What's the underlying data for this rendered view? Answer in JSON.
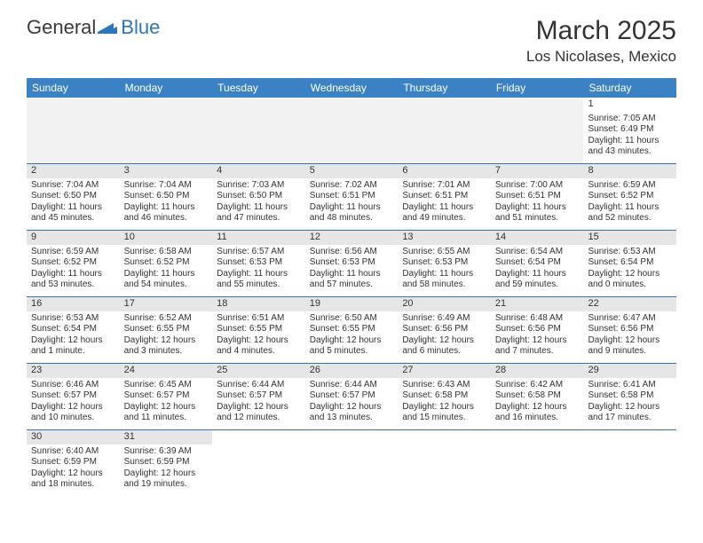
{
  "logo": {
    "part1": "General",
    "part2": "Blue"
  },
  "title": {
    "month_year": "March 2025",
    "location": "Los Nicolases, Mexico"
  },
  "colors": {
    "header_bg": "#3b82c4",
    "border": "#2d77b8",
    "daynum_bg": "#e6e6e6",
    "empty_bg": "#f2f2f2",
    "text": "#333333",
    "logo_blue": "#2d77b8"
  },
  "day_names": [
    "Sunday",
    "Monday",
    "Tuesday",
    "Wednesday",
    "Thursday",
    "Friday",
    "Saturday"
  ],
  "weeks": [
    [
      {
        "blank": true
      },
      {
        "blank": true
      },
      {
        "blank": true
      },
      {
        "blank": true
      },
      {
        "blank": true
      },
      {
        "blank": true
      },
      {
        "n": "1",
        "sr": "Sunrise: 7:05 AM",
        "ss": "Sunset: 6:49 PM",
        "dl1": "Daylight: 11 hours",
        "dl2": "and 43 minutes."
      }
    ],
    [
      {
        "n": "2",
        "sr": "Sunrise: 7:04 AM",
        "ss": "Sunset: 6:50 PM",
        "dl1": "Daylight: 11 hours",
        "dl2": "and 45 minutes."
      },
      {
        "n": "3",
        "sr": "Sunrise: 7:04 AM",
        "ss": "Sunset: 6:50 PM",
        "dl1": "Daylight: 11 hours",
        "dl2": "and 46 minutes."
      },
      {
        "n": "4",
        "sr": "Sunrise: 7:03 AM",
        "ss": "Sunset: 6:50 PM",
        "dl1": "Daylight: 11 hours",
        "dl2": "and 47 minutes."
      },
      {
        "n": "5",
        "sr": "Sunrise: 7:02 AM",
        "ss": "Sunset: 6:51 PM",
        "dl1": "Daylight: 11 hours",
        "dl2": "and 48 minutes."
      },
      {
        "n": "6",
        "sr": "Sunrise: 7:01 AM",
        "ss": "Sunset: 6:51 PM",
        "dl1": "Daylight: 11 hours",
        "dl2": "and 49 minutes."
      },
      {
        "n": "7",
        "sr": "Sunrise: 7:00 AM",
        "ss": "Sunset: 6:51 PM",
        "dl1": "Daylight: 11 hours",
        "dl2": "and 51 minutes."
      },
      {
        "n": "8",
        "sr": "Sunrise: 6:59 AM",
        "ss": "Sunset: 6:52 PM",
        "dl1": "Daylight: 11 hours",
        "dl2": "and 52 minutes."
      }
    ],
    [
      {
        "n": "9",
        "sr": "Sunrise: 6:59 AM",
        "ss": "Sunset: 6:52 PM",
        "dl1": "Daylight: 11 hours",
        "dl2": "and 53 minutes."
      },
      {
        "n": "10",
        "sr": "Sunrise: 6:58 AM",
        "ss": "Sunset: 6:52 PM",
        "dl1": "Daylight: 11 hours",
        "dl2": "and 54 minutes."
      },
      {
        "n": "11",
        "sr": "Sunrise: 6:57 AM",
        "ss": "Sunset: 6:53 PM",
        "dl1": "Daylight: 11 hours",
        "dl2": "and 55 minutes."
      },
      {
        "n": "12",
        "sr": "Sunrise: 6:56 AM",
        "ss": "Sunset: 6:53 PM",
        "dl1": "Daylight: 11 hours",
        "dl2": "and 57 minutes."
      },
      {
        "n": "13",
        "sr": "Sunrise: 6:55 AM",
        "ss": "Sunset: 6:53 PM",
        "dl1": "Daylight: 11 hours",
        "dl2": "and 58 minutes."
      },
      {
        "n": "14",
        "sr": "Sunrise: 6:54 AM",
        "ss": "Sunset: 6:54 PM",
        "dl1": "Daylight: 11 hours",
        "dl2": "and 59 minutes."
      },
      {
        "n": "15",
        "sr": "Sunrise: 6:53 AM",
        "ss": "Sunset: 6:54 PM",
        "dl1": "Daylight: 12 hours",
        "dl2": "and 0 minutes."
      }
    ],
    [
      {
        "n": "16",
        "sr": "Sunrise: 6:53 AM",
        "ss": "Sunset: 6:54 PM",
        "dl1": "Daylight: 12 hours",
        "dl2": "and 1 minute."
      },
      {
        "n": "17",
        "sr": "Sunrise: 6:52 AM",
        "ss": "Sunset: 6:55 PM",
        "dl1": "Daylight: 12 hours",
        "dl2": "and 3 minutes."
      },
      {
        "n": "18",
        "sr": "Sunrise: 6:51 AM",
        "ss": "Sunset: 6:55 PM",
        "dl1": "Daylight: 12 hours",
        "dl2": "and 4 minutes."
      },
      {
        "n": "19",
        "sr": "Sunrise: 6:50 AM",
        "ss": "Sunset: 6:55 PM",
        "dl1": "Daylight: 12 hours",
        "dl2": "and 5 minutes."
      },
      {
        "n": "20",
        "sr": "Sunrise: 6:49 AM",
        "ss": "Sunset: 6:56 PM",
        "dl1": "Daylight: 12 hours",
        "dl2": "and 6 minutes."
      },
      {
        "n": "21",
        "sr": "Sunrise: 6:48 AM",
        "ss": "Sunset: 6:56 PM",
        "dl1": "Daylight: 12 hours",
        "dl2": "and 7 minutes."
      },
      {
        "n": "22",
        "sr": "Sunrise: 6:47 AM",
        "ss": "Sunset: 6:56 PM",
        "dl1": "Daylight: 12 hours",
        "dl2": "and 9 minutes."
      }
    ],
    [
      {
        "n": "23",
        "sr": "Sunrise: 6:46 AM",
        "ss": "Sunset: 6:57 PM",
        "dl1": "Daylight: 12 hours",
        "dl2": "and 10 minutes."
      },
      {
        "n": "24",
        "sr": "Sunrise: 6:45 AM",
        "ss": "Sunset: 6:57 PM",
        "dl1": "Daylight: 12 hours",
        "dl2": "and 11 minutes."
      },
      {
        "n": "25",
        "sr": "Sunrise: 6:44 AM",
        "ss": "Sunset: 6:57 PM",
        "dl1": "Daylight: 12 hours",
        "dl2": "and 12 minutes."
      },
      {
        "n": "26",
        "sr": "Sunrise: 6:44 AM",
        "ss": "Sunset: 6:57 PM",
        "dl1": "Daylight: 12 hours",
        "dl2": "and 13 minutes."
      },
      {
        "n": "27",
        "sr": "Sunrise: 6:43 AM",
        "ss": "Sunset: 6:58 PM",
        "dl1": "Daylight: 12 hours",
        "dl2": "and 15 minutes."
      },
      {
        "n": "28",
        "sr": "Sunrise: 6:42 AM",
        "ss": "Sunset: 6:58 PM",
        "dl1": "Daylight: 12 hours",
        "dl2": "and 16 minutes."
      },
      {
        "n": "29",
        "sr": "Sunrise: 6:41 AM",
        "ss": "Sunset: 6:58 PM",
        "dl1": "Daylight: 12 hours",
        "dl2": "and 17 minutes."
      }
    ],
    [
      {
        "n": "30",
        "sr": "Sunrise: 6:40 AM",
        "ss": "Sunset: 6:59 PM",
        "dl1": "Daylight: 12 hours",
        "dl2": "and 18 minutes."
      },
      {
        "n": "31",
        "sr": "Sunrise: 6:39 AM",
        "ss": "Sunset: 6:59 PM",
        "dl1": "Daylight: 12 hours",
        "dl2": "and 19 minutes."
      },
      {
        "blank": true
      },
      {
        "blank": true
      },
      {
        "blank": true
      },
      {
        "blank": true
      },
      {
        "blank": true
      }
    ]
  ]
}
